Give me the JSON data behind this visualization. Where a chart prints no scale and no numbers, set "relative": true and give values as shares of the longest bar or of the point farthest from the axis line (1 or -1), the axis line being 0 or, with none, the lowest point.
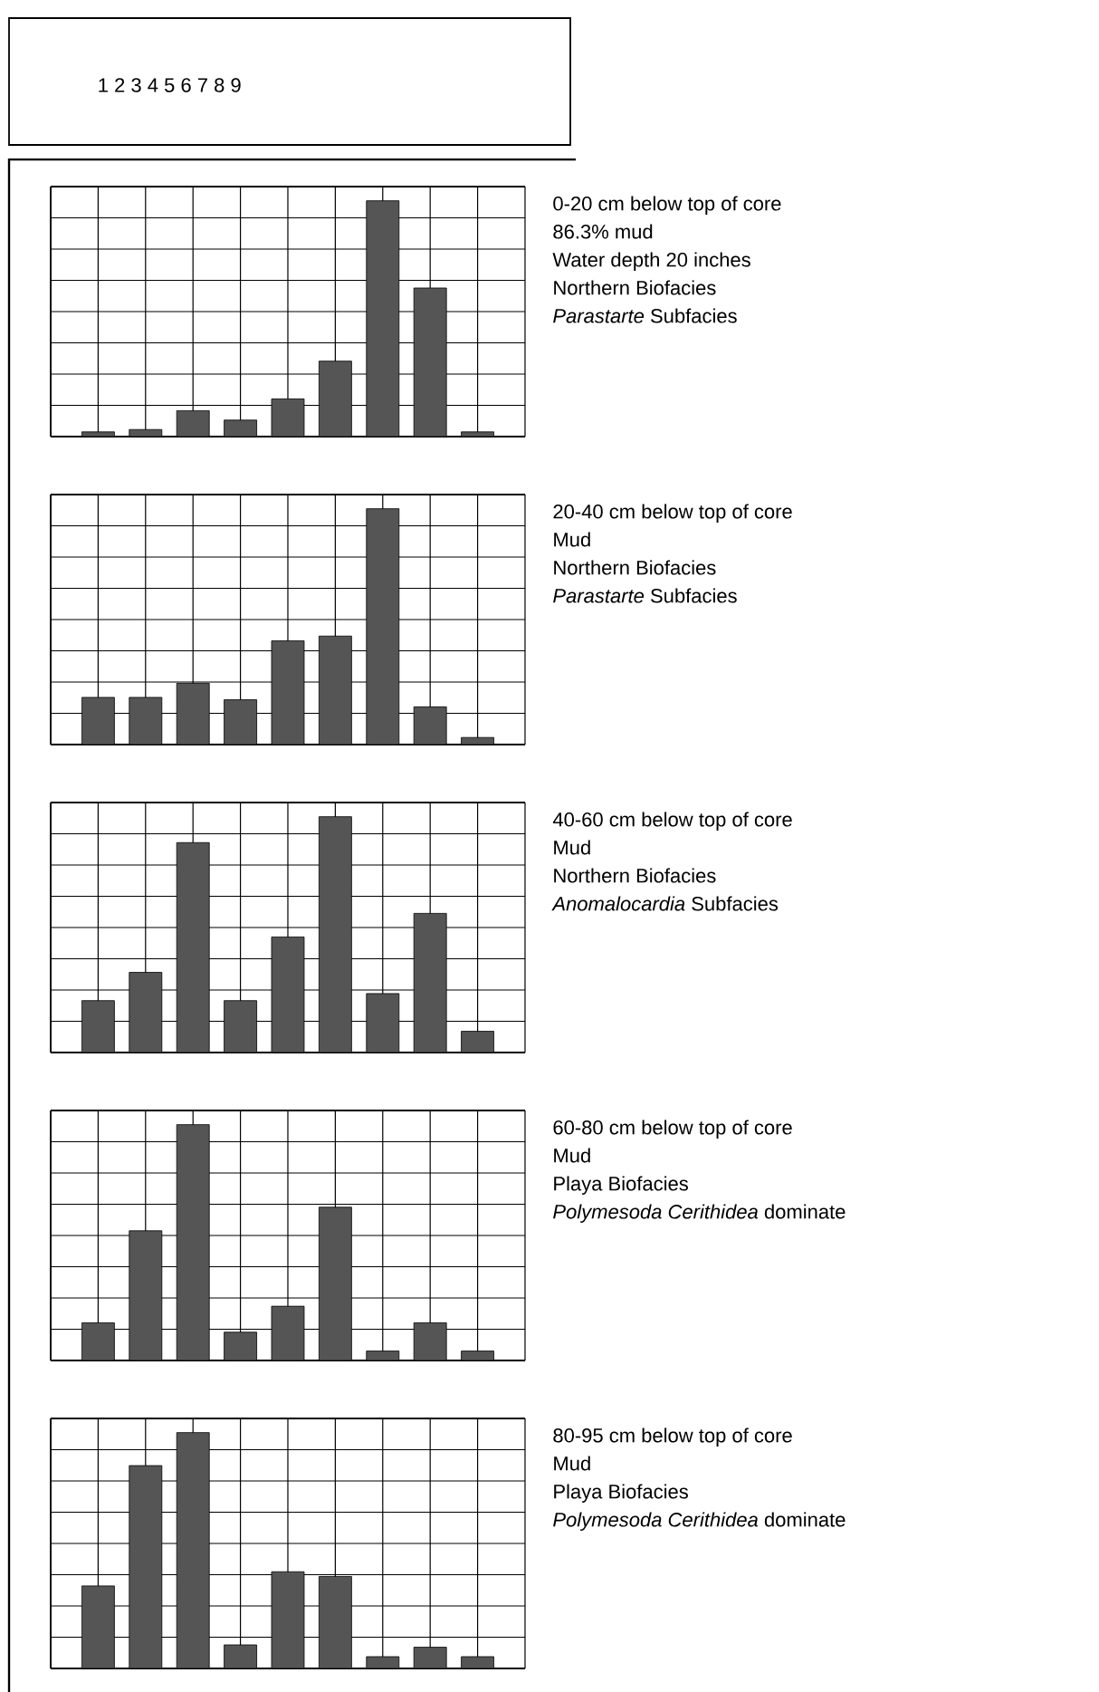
{
  "chart_data": [
    {
      "type": "other",
      "annotations": [
        "1 2 3 4 5 6 7 8 9"
      ]
    },
    {
      "type": "bar",
      "relative": true,
      "grid": true,
      "color": "#555555",
      "categories": [
        null,
        null,
        null,
        null,
        null,
        null,
        null,
        null,
        null
      ],
      "values": [
        0.02,
        0.03,
        0.11,
        0.07,
        0.16,
        0.32,
        1,
        0.63,
        0.02
      ],
      "annotations": [
        "0-20 cm below top of core",
        "86.3% mud",
        "Water depth 20 inches",
        "Northern Biofacies",
        "*Parastarte* Subfacies"
      ]
    },
    {
      "type": "bar",
      "relative": true,
      "grid": true,
      "color": "#555555",
      "categories": [
        null,
        null,
        null,
        null,
        null,
        null,
        null,
        null,
        null
      ],
      "values": [
        0.2,
        0.2,
        0.26,
        0.19,
        0.44,
        0.46,
        1,
        0.16,
        0.03
      ],
      "annotations": [
        "20-40 cm below top of core",
        "Mud",
        "Northern Biofacies",
        "*Parastarte* Subfacies"
      ]
    },
    {
      "type": "bar",
      "relative": true,
      "grid": true,
      "color": "#555555",
      "categories": [
        null,
        null,
        null,
        null,
        null,
        null,
        null,
        null,
        null
      ],
      "values": [
        0.22,
        0.34,
        0.89,
        0.22,
        0.49,
        1,
        0.25,
        0.59,
        0.09
      ],
      "annotations": [
        "40-60 cm below top of core",
        "Mud",
        "Northern Biofacies",
        "*Anomalocardia* Subfacies"
      ]
    },
    {
      "type": "bar",
      "relative": true,
      "grid": true,
      "color": "#555555",
      "categories": [
        null,
        null,
        null,
        null,
        null,
        null,
        null,
        null,
        null
      ],
      "values": [
        0.16,
        0.55,
        1,
        0.12,
        0.23,
        0.65,
        0.04,
        0.16,
        0.04
      ],
      "annotations": [
        "60-80 cm below top of core",
        "Mud",
        "Playa Biofacies",
        "*Polymesoda Cerithidea* dominate"
      ]
    },
    {
      "type": "bar",
      "relative": true,
      "grid": true,
      "color": "#555555",
      "categories": [
        null,
        null,
        null,
        null,
        null,
        null,
        null,
        null,
        null
      ],
      "values": [
        0.35,
        0.86,
        1,
        0.1,
        0.41,
        0.39,
        0.05,
        0.09,
        0.05
      ],
      "annotations": [
        "80-95 cm below top of core",
        "Mud",
        "Playa Biofacies",
        "*Polymesoda Cerithidea* dominate"
      ]
    }
  ]
}
